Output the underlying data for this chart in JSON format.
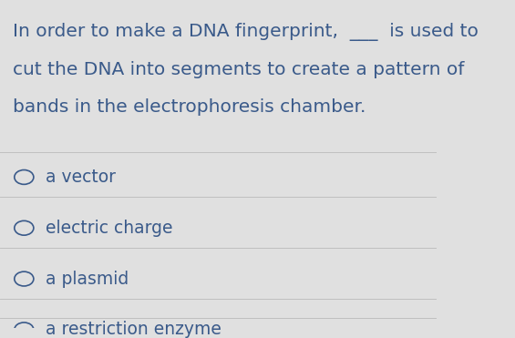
{
  "background_color": "#e0e0e0",
  "question_lines": [
    "In order to make a DNA fingerprint,  ___  is used to",
    "cut the DNA into segments to create a pattern of",
    "bands in the electrophoresis chamber."
  ],
  "options": [
    "a vector",
    "electric charge",
    "a plasmid",
    "a restriction enzyme"
  ],
  "text_color": "#3a5a8a",
  "question_fontsize": 14.5,
  "option_fontsize": 13.5,
  "font_family": "sans-serif",
  "separator_color": "#c0c0c0",
  "circle_color": "#3a5a8a"
}
